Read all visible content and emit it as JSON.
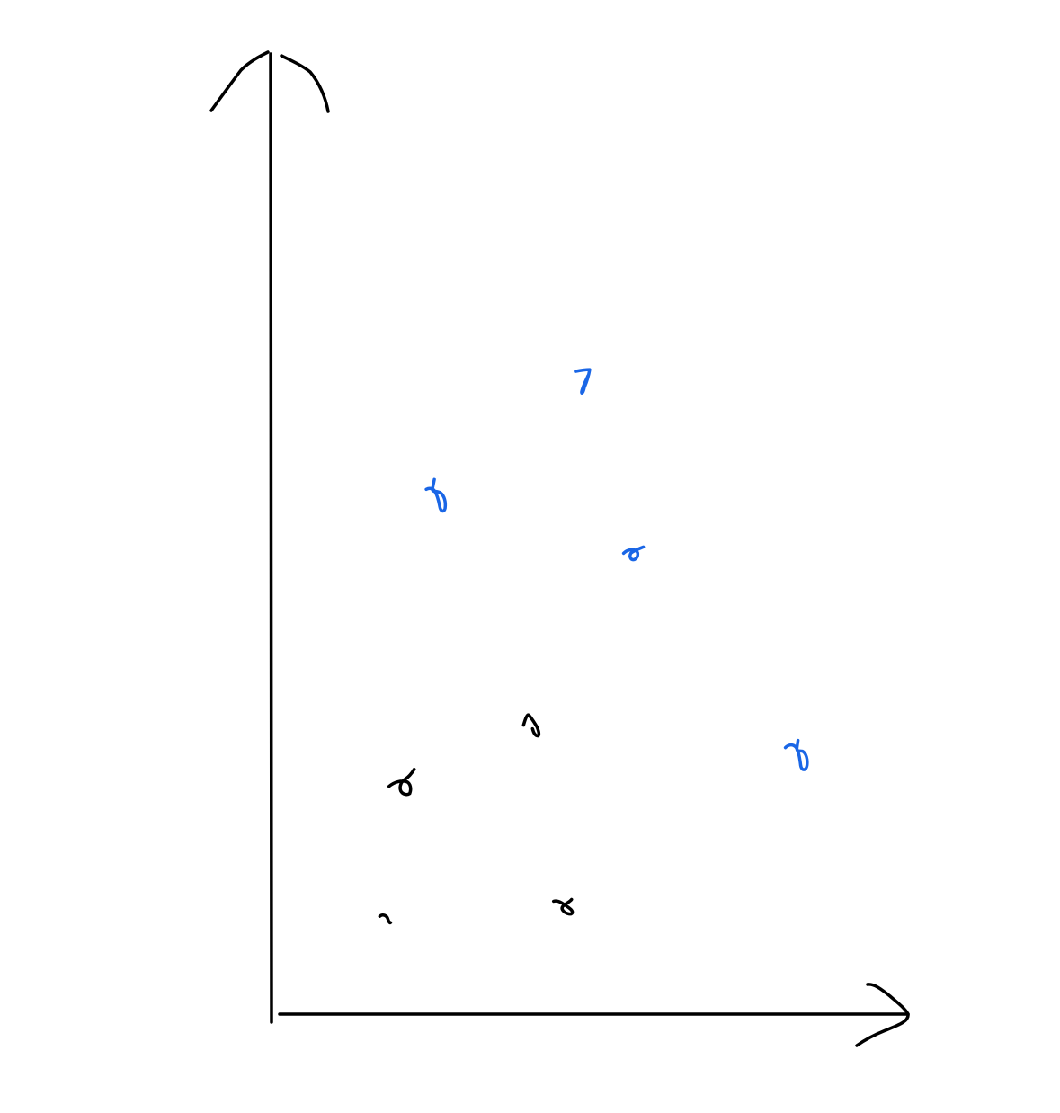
{
  "chart_data": {
    "type": "scatter",
    "style": "hand-drawn sketch",
    "title": "",
    "xlabel": "",
    "ylabel": "",
    "xlim": [
      0,
      10
    ],
    "ylim": [
      0,
      10
    ],
    "grid": false,
    "legend": "none",
    "series": [
      {
        "color": "#000000",
        "points": [
          {
            "x": 1.8,
            "y": 1.0
          },
          {
            "x": 4.6,
            "y": 1.1
          },
          {
            "x": 2.1,
            "y": 2.4
          },
          {
            "x": 4.1,
            "y": 3.0
          }
        ]
      },
      {
        "color": "#1a66e6",
        "points": [
          {
            "x": 2.6,
            "y": 5.4
          },
          {
            "x": 4.9,
            "y": 6.6
          },
          {
            "x": 5.7,
            "y": 4.8
          },
          {
            "x": 8.3,
            "y": 2.7
          }
        ]
      }
    ]
  }
}
